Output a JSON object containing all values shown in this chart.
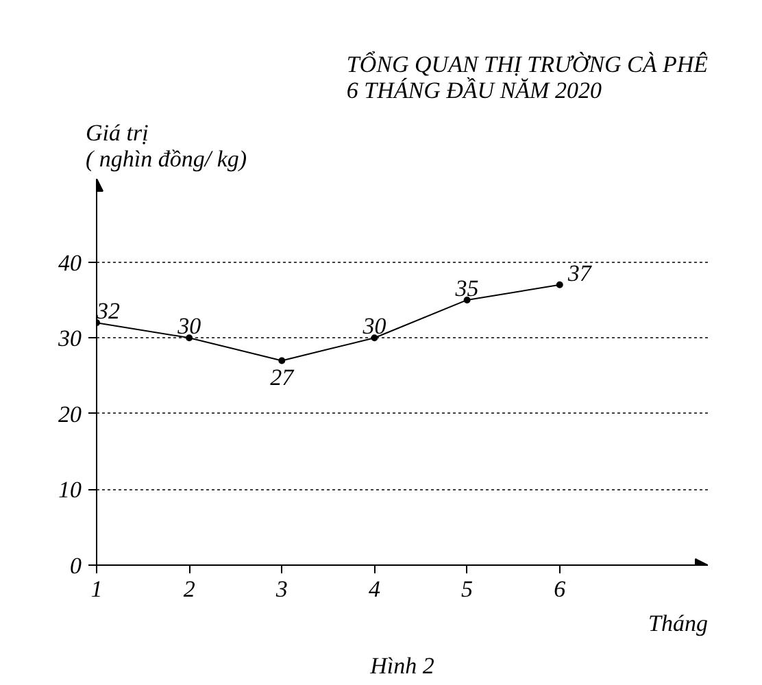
{
  "chart_data": {
    "type": "line",
    "title": "TỔNG QUAN THỊ TRƯỜNG CÀ PHÊ\n6 THÁNG ĐẦU NĂM 2020",
    "xlabel": "Tháng",
    "ylabel": "Giá trị\n( nghìn đồng/ kg)",
    "x": [
      1,
      2,
      3,
      4,
      5,
      6
    ],
    "series": [
      {
        "color": "#000000",
        "values": [
          32,
          30,
          27,
          30,
          35,
          37
        ]
      }
    ],
    "xlim": [
      1,
      7.6
    ],
    "xticks": [
      1,
      2,
      3,
      4,
      5,
      6
    ],
    "ylim": [
      0,
      51
    ],
    "yticks": [
      0,
      10,
      20,
      30,
      40
    ],
    "grid": "y",
    "marker": "circle",
    "line_style": "solid",
    "data_labels": true,
    "annotations": [
      "Hình 2"
    ]
  }
}
